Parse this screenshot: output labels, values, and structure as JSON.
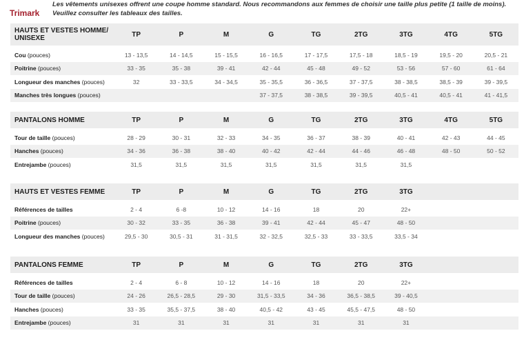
{
  "brand": "Trimark",
  "note": [
    "Les vêtements unisexes offrent une coupe homme standard. Nous recommandons aux femmes de choisir une taille plus petite (1 taille de moins).",
    "Veuillez consulter les tableaux des tailles."
  ],
  "sections": [
    {
      "title": "HAUTS ET VESTES HOMME/\nUNISEXE",
      "sizes": [
        "TP",
        "P",
        "M",
        "G",
        "TG",
        "2TG",
        "3TG",
        "4TG",
        "5TG"
      ],
      "rows": [
        {
          "label": "Cou",
          "unit": " (pouces)",
          "values": [
            "13 - 13,5",
            "14 - 14,5",
            "15 - 15,5",
            "16 - 16,5",
            "17 - 17,5",
            "17,5 - 18",
            "18,5 - 19",
            "19,5 - 20",
            "20,5 - 21"
          ]
        },
        {
          "label": "Poitrine",
          "unit": " (pouces)",
          "values": [
            "33 - 35",
            "35 - 38",
            "39 - 41",
            "42 - 44",
            "45 - 48",
            "49 - 52",
            "53 - 56",
            "57 - 60",
            "61 - 64"
          ]
        },
        {
          "label": "Longueur des manches",
          "unit": " (pouces)",
          "values": [
            "32",
            "33 - 33,5",
            "34 - 34,5",
            "35 - 35,5",
            "36 - 36,5",
            "37 - 37,5",
            "38 - 38,5",
            "38,5 - 39",
            "39 - 39,5"
          ]
        },
        {
          "label": "Manches très longues",
          "unit": "  (pouces)",
          "values": [
            "",
            "",
            "",
            "37 - 37,5",
            "38 - 38,5",
            "39 - 39,5",
            "40,5 - 41",
            "40,5 - 41",
            "41 - 41,5"
          ]
        }
      ]
    },
    {
      "title": "PANTALONS HOMME",
      "sizes": [
        "TP",
        "P",
        "M",
        "G",
        "TG",
        "2TG",
        "3TG",
        "4TG",
        "5TG"
      ],
      "rows": [
        {
          "label": "Tour de taille",
          "unit": " (pouces)",
          "values": [
            "28 - 29",
            "30 - 31",
            "32 - 33",
            "34 - 35",
            "36 - 37",
            "38 - 39",
            "40 - 41",
            "42 - 43",
            "44 - 45"
          ]
        },
        {
          "label": "Hanches",
          "unit": " (pouces)",
          "values": [
            "34 - 36",
            "36 - 38",
            "38 - 40",
            "40 - 42",
            "42 - 44",
            "44 - 46",
            "46 - 48",
            "48 - 50",
            "50 - 52"
          ]
        },
        {
          "label": "Entrejambe",
          "unit": " (pouces)",
          "values": [
            "31,5",
            "31,5",
            "31,5",
            "31,5",
            "31,5",
            "31,5",
            "31,5",
            "",
            ""
          ]
        }
      ]
    },
    {
      "title": "HAUTS ET VESTES FEMME",
      "sizes": [
        "TP",
        "P",
        "M",
        "G",
        "TG",
        "2TG",
        "3TG",
        "",
        ""
      ],
      "rows": [
        {
          "label": "Références de tailles",
          "unit": "",
          "values": [
            "2 - 4",
            "6 -8",
            "10 - 12",
            "14 - 16",
            "18",
            "20",
            "22+",
            "",
            ""
          ]
        },
        {
          "label": "Poitrine",
          "unit": " (pouces)",
          "values": [
            "30 - 32",
            "33 - 35",
            "36 - 38",
            "39 - 41",
            "42 - 44",
            "45 - 47",
            "48 - 50",
            "",
            ""
          ]
        },
        {
          "label": "Longueur des manches",
          "unit": " (pouces)",
          "values": [
            "29,5 - 30",
            "30,5 - 31",
            "31 - 31,5",
            "32 - 32,5",
            "32,5 - 33",
            "33 - 33,5",
            "33,5 - 34",
            "",
            ""
          ]
        }
      ]
    },
    {
      "title": "PANTALONS FEMME",
      "sizes": [
        "TP",
        "P",
        "M",
        "G",
        "TG",
        "2TG",
        "3TG",
        "",
        ""
      ],
      "rows": [
        {
          "label": "Références de tailles",
          "unit": "",
          "values": [
            "2 - 4",
            "6 - 8",
            "10 - 12",
            "14 - 16",
            "18",
            "20",
            "22+",
            "",
            ""
          ]
        },
        {
          "label": "Tour de taille",
          "unit": " (pouces)",
          "values": [
            "24 - 26",
            "26,5 - 28,5",
            "29 - 30",
            "31,5 - 33,5",
            "34 - 36",
            "36,5 - 38,5",
            "39 - 40,5",
            "",
            ""
          ]
        },
        {
          "label": "Hanches",
          "unit": " (pouces)",
          "values": [
            "33 - 35",
            "35,5 - 37,5",
            "38 - 40",
            "40,5 - 42",
            "43 - 45",
            "45,5 - 47,5",
            "48 - 50",
            "",
            ""
          ]
        },
        {
          "label": "Entrejambe",
          "unit": " (pouces)",
          "values": [
            "31",
            "31",
            "31",
            "31",
            "31",
            "31",
            "31",
            "",
            ""
          ]
        }
      ]
    }
  ]
}
